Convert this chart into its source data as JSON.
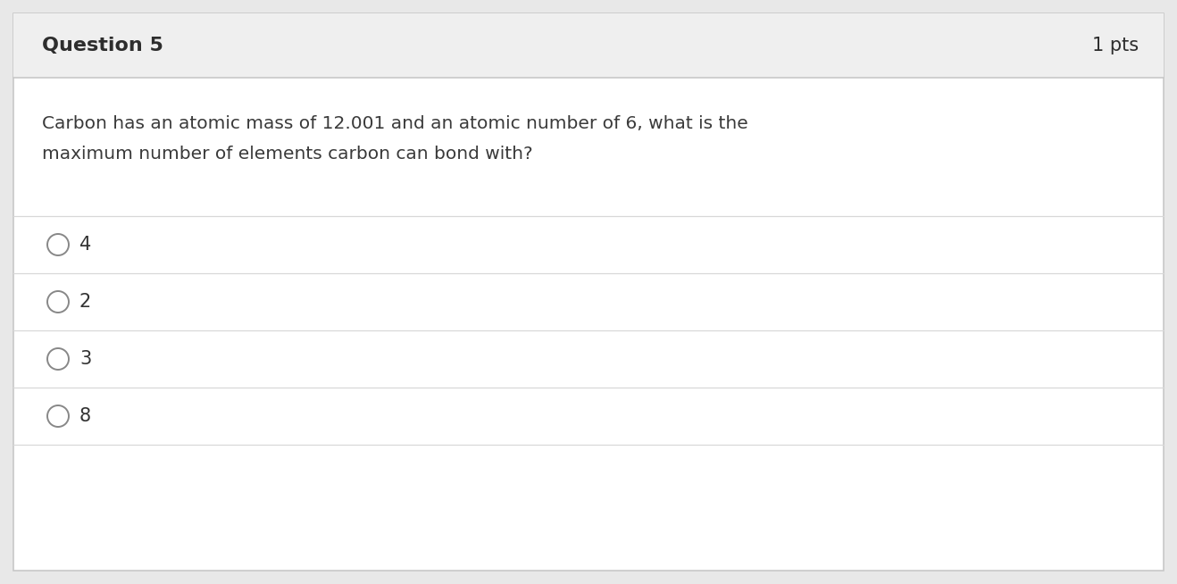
{
  "title": "Question 5",
  "pts": "1 pts",
  "question_line1": "Carbon has an atomic mass of 12.001 and an atomic number of 6, what is the",
  "question_line2": "maximum number of elements carbon can bond with?",
  "options": [
    "4",
    "2",
    "3",
    "8"
  ],
  "header_bg": "#efefef",
  "body_bg": "#ffffff",
  "outer_border_color": "#c8c8c8",
  "header_border_color": "#c8c8c8",
  "divider_color": "#d8d8d8",
  "title_color": "#2d2d2d",
  "pts_color": "#2d2d2d",
  "question_color": "#3a3a3a",
  "option_color": "#333333",
  "circle_edge_color": "#888888",
  "title_fontsize": 16,
  "pts_fontsize": 15,
  "question_fontsize": 14.5,
  "option_fontsize": 15,
  "fig_width": 13.18,
  "fig_height": 6.54,
  "dpi": 100
}
